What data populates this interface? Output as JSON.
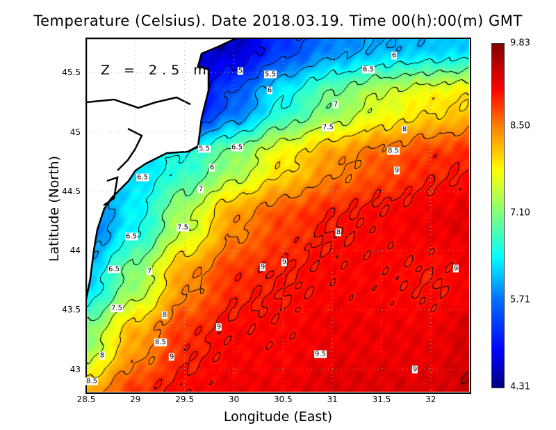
{
  "chart_data": {
    "type": "heatmap",
    "title": "Temperature (Celsius). Date 2018.03.19. Time 00(h):00(m)  GMT",
    "annotation": "Z = 2.5 m",
    "xlabel": "Longitude (East)",
    "ylabel": "Latitude (North)",
    "xlim": [
      28.5,
      32.39
    ],
    "ylim": [
      42.81,
      45.79
    ],
    "x_ticks": [
      "28.5",
      "29",
      "29.5",
      "30",
      "30.5",
      "31",
      "31.5",
      "32"
    ],
    "y_ticks": [
      "45.5",
      "45",
      "44.5",
      "44",
      "43.5",
      "43"
    ],
    "grid": true,
    "colorbar": {
      "min": 4.31,
      "max": 9.83,
      "ticks": [
        "9.83",
        "8.50",
        "7.10",
        "5.71",
        "4.31"
      ]
    },
    "contour_interval": 0.5,
    "grid_lons": [
      28.5,
      29,
      29.5,
      30,
      30.5,
      31,
      31.5,
      32,
      32.5
    ],
    "grid_lats": [
      45.75,
      45.25,
      44.75,
      44.25,
      43.75,
      43.25,
      42.75
    ],
    "values": [
      [
        null,
        null,
        null,
        4.6,
        5.3,
        5.8,
        6.0,
        6.1,
        6.2
      ],
      [
        null,
        null,
        null,
        5.6,
        6.5,
        7.1,
        7.6,
        7.9,
        8.1
      ],
      [
        null,
        6.2,
        6.6,
        7.2,
        7.9,
        8.4,
        8.7,
        8.9,
        9.0
      ],
      [
        null,
        6.4,
        7.4,
        8.4,
        8.8,
        9.0,
        9.1,
        9.2,
        9.3
      ],
      [
        6.2,
        7.2,
        8.4,
        8.9,
        9.0,
        9.1,
        9.1,
        9.0,
        9.2
      ],
      [
        7.2,
        8.3,
        8.9,
        9.1,
        9.1,
        9.2,
        9.2,
        9.2,
        9.4
      ],
      [
        8.3,
        8.9,
        9.1,
        9.2,
        9.2,
        9.3,
        9.3,
        9.3,
        9.5
      ]
    ],
    "contour_labels": [
      "6",
      "6.5",
      "5",
      "5.5",
      "6",
      "7",
      "7.5",
      "8",
      "5.5",
      "6.5",
      "8.5",
      "9",
      "6",
      "6.5",
      "7",
      "7.5",
      "8",
      "6.5",
      "9",
      "9",
      "6.5",
      "7",
      "9",
      "7.5",
      "8",
      "9",
      "8.5",
      "9.5",
      "9",
      "8",
      "9",
      "8.5"
    ]
  }
}
